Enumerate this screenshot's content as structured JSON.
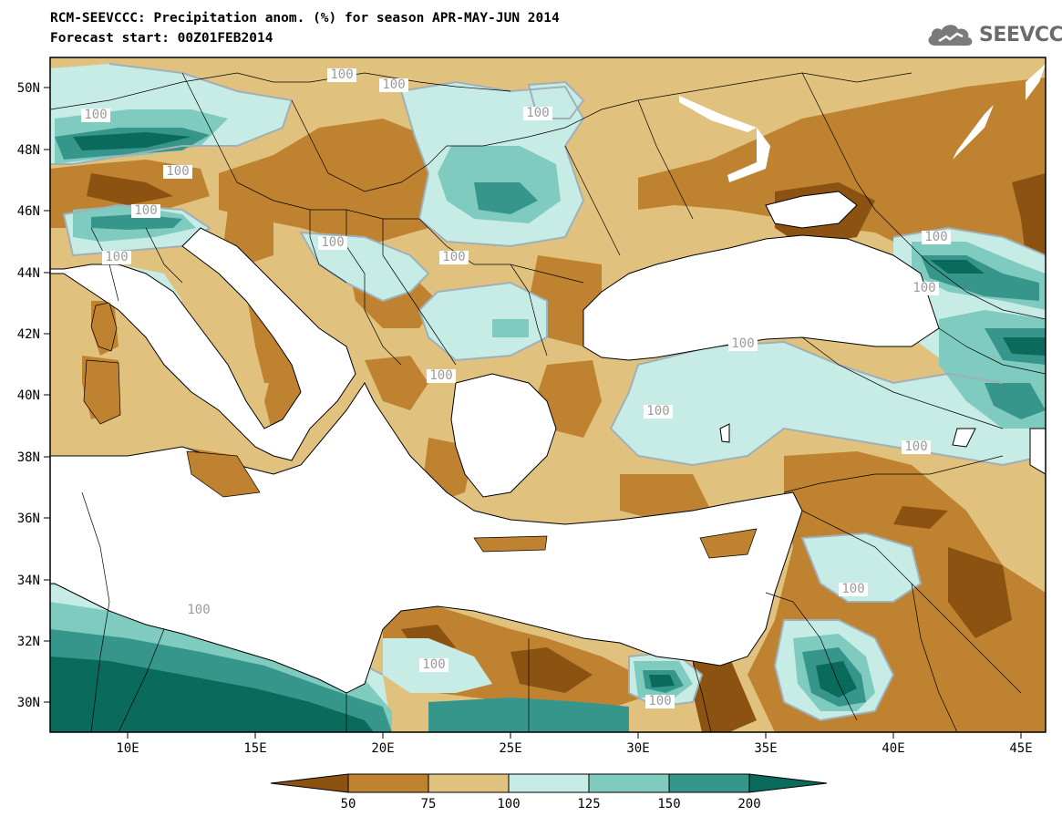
{
  "title": "RCM-SEEVCCC: Precipitation anom. (%) for season APR-MAY-JUN 2014",
  "subtitle": "Forecast start: 00Z01FEB2014",
  "logo_text": "SEEVCCC",
  "x_ticks": [
    "10E",
    "15E",
    "20E",
    "25E",
    "30E",
    "35E",
    "40E",
    "45E"
  ],
  "y_ticks": [
    "50N",
    "48N",
    "46N",
    "44N",
    "42N",
    "40N",
    "38N",
    "36N",
    "34N",
    "32N",
    "30N"
  ],
  "colorbar": {
    "labels": [
      "50",
      "75",
      "100",
      "125",
      "150",
      "200"
    ],
    "colors": [
      "#8c5212",
      "#bf8230",
      "#e0c27e",
      "#c7ece6",
      "#7fcbbf",
      "#36968b",
      "#0a6a5c"
    ]
  },
  "contour_labels": [
    "100",
    "100",
    "100",
    "100",
    "100",
    "100",
    "100",
    "100",
    "100",
    "100",
    "100",
    "100",
    "100",
    "100",
    "100",
    "100",
    "100",
    "100",
    "100",
    "100"
  ],
  "colors": {
    "land_default": "#e0c27e",
    "sea": "#ffffff",
    "contour_line": "#9fb0b8"
  }
}
